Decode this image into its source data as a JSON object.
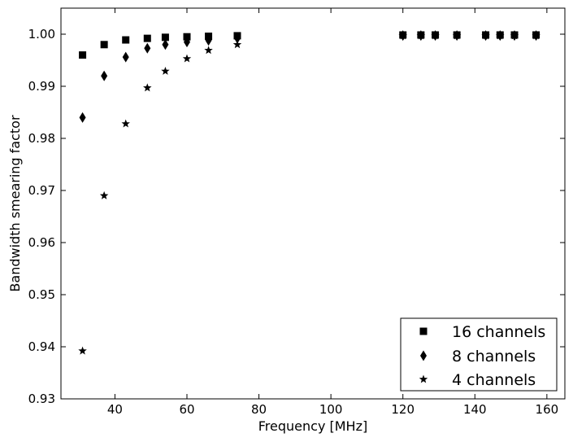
{
  "chart_data": {
    "type": "scatter",
    "title": "",
    "xlabel": "Frequency [MHz]",
    "ylabel": "Bandwidth smearing factor",
    "xlim": [
      25,
      165
    ],
    "ylim": [
      0.93,
      1.005
    ],
    "x_ticks": [
      40,
      60,
      80,
      100,
      120,
      140,
      160
    ],
    "x_tick_labels": [
      "40",
      "60",
      "80",
      "100",
      "120",
      "140",
      "160"
    ],
    "y_ticks": [
      0.93,
      0.94,
      0.95,
      0.96,
      0.97,
      0.98,
      0.99,
      1.0
    ],
    "y_tick_labels": [
      "0.93",
      "0.94",
      "0.95",
      "0.96",
      "0.97",
      "0.98",
      "0.99",
      "1.00"
    ],
    "grid": false,
    "legend_position": "bottom-right",
    "series": [
      {
        "name": "16 channels",
        "marker": "square",
        "color": "#000000",
        "x": [
          31,
          37,
          43,
          49,
          54,
          60,
          66,
          74,
          120,
          125,
          129,
          135,
          143,
          147,
          151,
          157
        ],
        "y": [
          0.996,
          0.998,
          0.9989,
          0.9992,
          0.9994,
          0.9995,
          0.9996,
          0.9997,
          0.99985,
          0.99985,
          0.99985,
          0.99985,
          0.99985,
          0.99985,
          0.99985,
          0.99985
        ]
      },
      {
        "name": "8 channels",
        "marker": "diamond",
        "color": "#000000",
        "x": [
          31,
          37,
          43,
          49,
          54,
          60,
          66,
          74,
          120,
          125,
          129,
          135,
          143,
          147,
          151,
          157
        ],
        "y": [
          0.984,
          0.992,
          0.9956,
          0.9973,
          0.998,
          0.9985,
          0.9988,
          0.9992,
          0.99975,
          0.99975,
          0.99975,
          0.99975,
          0.99975,
          0.99975,
          0.99975,
          0.99975
        ]
      },
      {
        "name": "4 channels",
        "marker": "star",
        "color": "#000000",
        "x": [
          31,
          37,
          43,
          49,
          54,
          60,
          66,
          74,
          120,
          125,
          129,
          135,
          143,
          147,
          151,
          157
        ],
        "y": [
          0.9392,
          0.969,
          0.9828,
          0.9897,
          0.9929,
          0.9953,
          0.9969,
          0.998,
          0.9997,
          0.9997,
          0.9997,
          0.9997,
          0.9997,
          0.9997,
          0.9997,
          0.9997
        ]
      }
    ]
  }
}
